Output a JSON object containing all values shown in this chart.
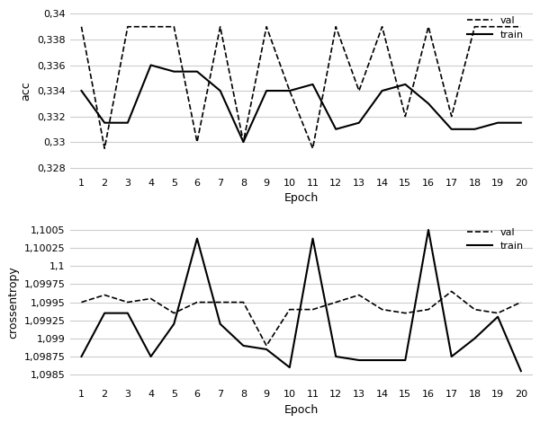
{
  "epochs": [
    1,
    2,
    3,
    4,
    5,
    6,
    7,
    8,
    9,
    10,
    11,
    12,
    13,
    14,
    15,
    16,
    17,
    18,
    19,
    20
  ],
  "acc_val": [
    0.339,
    0.3295,
    0.339,
    0.339,
    0.339,
    0.33,
    0.339,
    0.33,
    0.339,
    0.334,
    0.3295,
    0.339,
    0.334,
    0.339,
    0.332,
    0.339,
    0.332,
    0.339,
    0.339,
    0.339
  ],
  "acc_train": [
    0.334,
    0.3315,
    0.3315,
    0.336,
    0.3355,
    0.3355,
    0.334,
    0.33,
    0.334,
    0.334,
    0.3345,
    0.331,
    0.3315,
    0.334,
    0.3345,
    0.333,
    0.331,
    0.331,
    0.3315,
    0.3315
  ],
  "loss_val": [
    1.0995,
    1.0996,
    1.0995,
    1.09955,
    1.09935,
    1.0995,
    1.0995,
    1.0995,
    1.0989,
    1.0994,
    1.0994,
    1.0995,
    1.0996,
    1.0994,
    1.09935,
    1.0994,
    1.09965,
    1.0994,
    1.09935,
    1.0995
  ],
  "loss_train": [
    1.09875,
    1.09935,
    1.09935,
    1.09875,
    1.0992,
    1.10038,
    1.0992,
    1.0989,
    1.09885,
    1.0986,
    1.10038,
    1.09875,
    1.0987,
    1.0987,
    1.0987,
    1.1005,
    1.09875,
    1.099,
    1.0993,
    1.09855
  ],
  "acc_yticks": [
    0.328,
    0.33,
    0.332,
    0.334,
    0.336,
    0.338,
    0.34
  ],
  "acc_yticklabels": [
    "0,328",
    "0,33",
    "0,332",
    "0,334",
    "0,336",
    "0,338",
    "0,34"
  ],
  "loss_yticks": [
    1.0985,
    1.09875,
    1.099,
    1.09925,
    1.0995,
    1.09975,
    1.1,
    1.10025,
    1.1005
  ],
  "loss_yticklabels": [
    "1,0985",
    "1,09875",
    "1,099",
    "1,09925",
    "1,0995",
    "1,09975",
    "1,1",
    "1,10025",
    "1,1005"
  ],
  "line_color": "#000000",
  "bg_color": "#ffffff",
  "grid_color": "#cccccc"
}
